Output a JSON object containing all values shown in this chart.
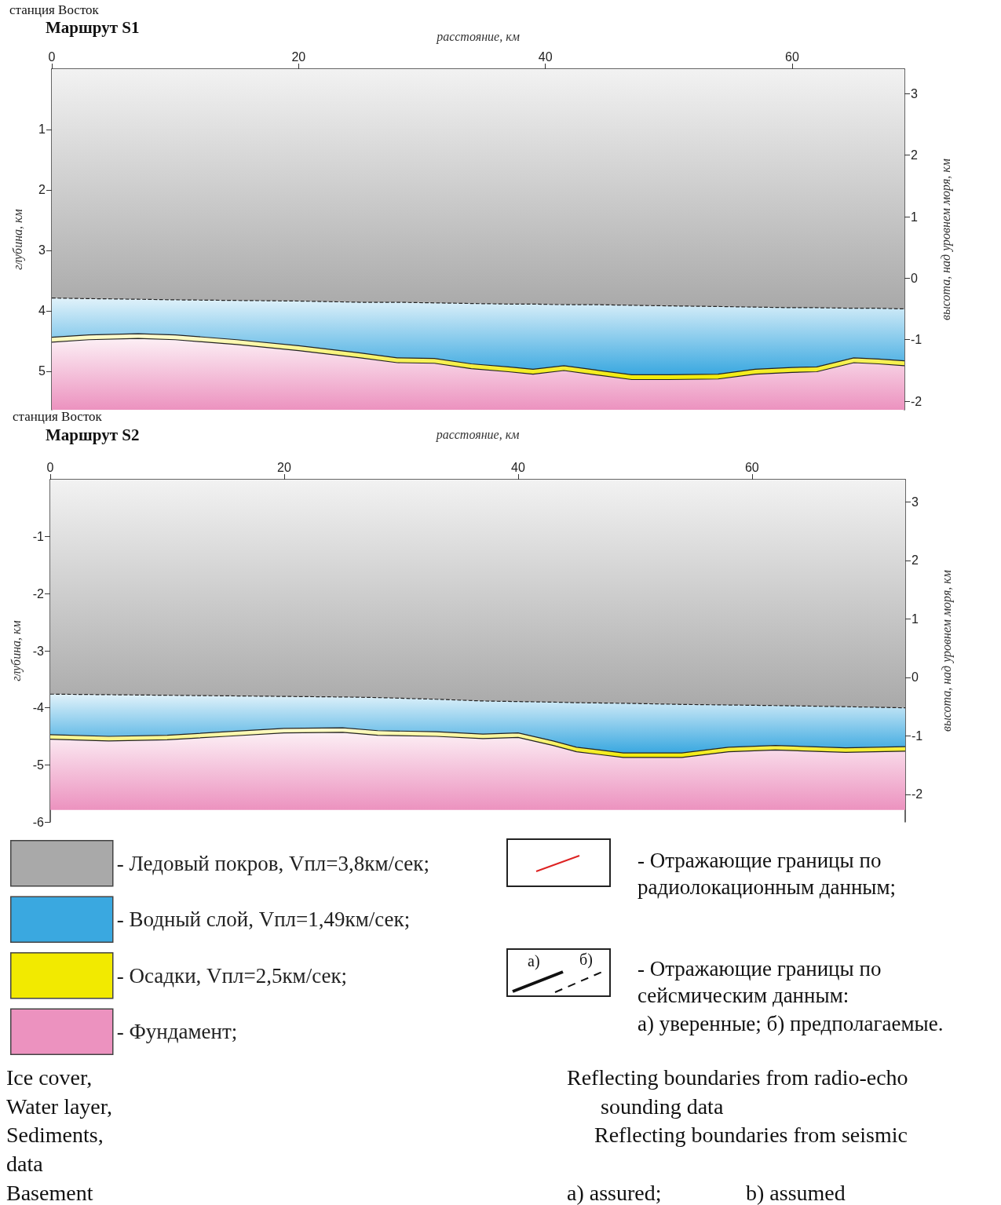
{
  "chart_data": [
    {
      "type": "area",
      "title": "Маршрут S1",
      "xlabel": "расстояние, км",
      "ylabel": "глубина, км",
      "y2label": "высота, над уровнем моря, км",
      "annotations": [
        "станция Восток"
      ],
      "x": [
        0,
        3,
        7,
        10,
        15,
        20,
        25,
        28,
        31,
        34,
        37,
        39,
        41.5,
        44,
        47,
        50,
        54,
        57,
        60,
        62,
        65,
        67,
        69.1
      ],
      "stacked": true,
      "xlim": [
        0,
        69.1
      ],
      "xticks": [
        0,
        20,
        40,
        60
      ],
      "ylim": [
        5.64,
        0
      ],
      "yticks": [
        1,
        2,
        3,
        4,
        5
      ],
      "y2lim": [
        -2.14,
        3.4
      ],
      "y2ticks": [
        -2,
        -1,
        0,
        1,
        2,
        3
      ],
      "legend": false,
      "series": [
        {
          "color": "#a9a9a9",
          "line_style": "dashed",
          "values": [
            3.79,
            3.8,
            3.81,
            3.82,
            3.83,
            3.84,
            3.86,
            3.86,
            3.87,
            3.88,
            3.89,
            3.89,
            3.9,
            3.9,
            3.91,
            3.92,
            3.93,
            3.94,
            3.95,
            3.95,
            3.96,
            3.96,
            3.97
          ]
        },
        {
          "color": "#3aa8e0",
          "line_style": "solid",
          "values": [
            0.65,
            0.6,
            0.57,
            0.58,
            0.65,
            0.74,
            0.84,
            0.92,
            0.92,
            1.0,
            1.04,
            1.08,
            1.01,
            1.08,
            1.15,
            1.14,
            1.12,
            1.03,
            0.99,
            0.98,
            0.82,
            0.84,
            0.86
          ]
        },
        {
          "color": "#f2ea00",
          "line_style": "solid",
          "values": [
            0.08,
            0.08,
            0.08,
            0.08,
            0.08,
            0.08,
            0.08,
            0.08,
            0.08,
            0.08,
            0.08,
            0.08,
            0.08,
            0.08,
            0.08,
            0.08,
            0.08,
            0.08,
            0.08,
            0.08,
            0.08,
            0.08,
            0.08
          ]
        },
        {
          "color": "#ec92bf",
          "values": [
            1.12,
            1.16,
            1.18,
            1.16,
            1.08,
            0.98,
            0.86,
            0.78,
            0.77,
            0.68,
            0.63,
            0.59,
            0.65,
            0.58,
            0.5,
            0.5,
            0.51,
            0.59,
            0.62,
            0.63,
            0.78,
            0.76,
            0.73
          ]
        }
      ]
    },
    {
      "type": "area",
      "title": "Маршрут S2",
      "xlabel": "расстояние, км",
      "ylabel": "глубина, км",
      "y2label": "высота, над уровнем моря, км",
      "annotations": [
        "станция Восток",
        "- Отражающие границы по радиолокационным данным;",
        "а)",
        "б)",
        "- Отражающие границы по сейсмическим данным:",
        "а) уверенные; б) предполагаемые.",
        "Ice cover,",
        "Water layer,",
        "Sediments,",
        "data",
        "Basement",
        "Reflecting boundaries from radio-echo",
        "sounding data",
        "Reflecting boundaries from seismic",
        "a)  assured;",
        "b) assumed"
      ],
      "x": [
        0,
        5,
        10,
        15,
        20,
        25,
        28,
        33,
        37,
        40,
        43,
        45,
        49,
        54,
        58,
        62,
        68,
        73.1
      ],
      "stacked": true,
      "xlim": [
        0,
        73.1
      ],
      "xticks": [
        0,
        20,
        40,
        60
      ],
      "ylim": [
        -6,
        0
      ],
      "yticks": [
        -1,
        -2,
        -3,
        -4,
        -5,
        -6
      ],
      "y2lim": [
        -2.47,
        3.38
      ],
      "y2ticks": [
        -2,
        -1,
        0,
        1,
        2,
        3
      ],
      "legend": "bottom left",
      "series": [
        {
          "name": "- Ледовый покров, Vпл=3,8км/сек;",
          "color": "#a9a9a9",
          "line_style": "dashed",
          "values": [
            -3.76,
            -3.77,
            -3.78,
            -3.79,
            -3.8,
            -3.81,
            -3.82,
            -3.85,
            -3.88,
            -3.89,
            -3.9,
            -3.91,
            -3.92,
            -3.94,
            -3.95,
            -3.96,
            -3.98,
            -4.0
          ]
        },
        {
          "name": "- Водный слой, Vпл=1,49км/сек;",
          "color": "#3aa8e0",
          "line_style": "solid",
          "values": [
            -0.71,
            -0.73,
            -0.7,
            -0.63,
            -0.56,
            -0.54,
            -0.58,
            -0.57,
            -0.58,
            -0.55,
            -0.68,
            -0.78,
            -0.87,
            -0.85,
            -0.74,
            -0.7,
            -0.72,
            -0.68
          ]
        },
        {
          "name": "- Осадки, Vпл=2,5км/сек;",
          "color": "#f2ea00",
          "line_style": "solid",
          "values": [
            -0.08,
            -0.08,
            -0.08,
            -0.08,
            -0.08,
            -0.08,
            -0.08,
            -0.08,
            -0.08,
            -0.08,
            -0.08,
            -0.08,
            -0.08,
            -0.08,
            -0.08,
            -0.08,
            -0.08,
            -0.08
          ]
        },
        {
          "name": "- Фундамент;",
          "color": "#ec92bf",
          "values": [
            -1.24,
            -1.21,
            -1.23,
            -1.29,
            -1.35,
            -1.36,
            -1.31,
            -1.29,
            -1.25,
            -1.27,
            -1.13,
            -1.02,
            -0.92,
            -0.92,
            -1.02,
            -1.05,
            -1.01,
            -1.03
          ]
        }
      ]
    }
  ]
}
